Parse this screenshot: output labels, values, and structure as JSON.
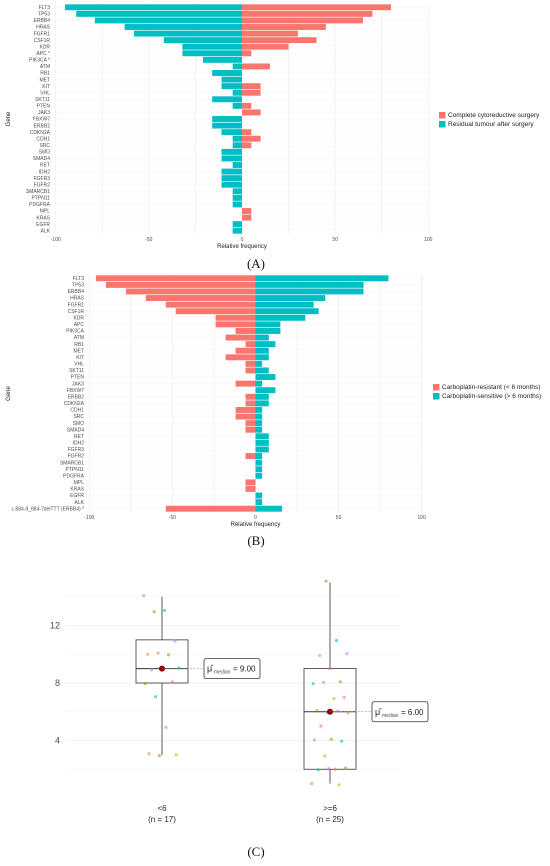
{
  "chart_data": [
    {
      "type": "bar",
      "panel_label": "(A)",
      "ylabel": "Gene",
      "xlabel": "Relative frequency",
      "x_ticks": [
        "-100",
        "-50",
        "0",
        "50",
        "100"
      ],
      "xlim": [
        -102,
        102
      ],
      "categories": [
        "FLT3",
        "TP53",
        "ERBB4",
        "HRAS",
        "FGFR1",
        "CSF1R",
        "KDR",
        "APC *",
        "PIK3CA *",
        "ATM",
        "RB1",
        "MET",
        "KIT",
        "VHL",
        "SKT11",
        "PTEN",
        "JAK3",
        "FBXW7",
        "ERBB2",
        "CDKN2A",
        "CDH1",
        "SRC",
        "SMO",
        "SMAD4",
        "RET",
        "IDH2",
        "FGFR3",
        "FGFR2",
        "SMARCB1",
        "PTPN11",
        "PDGFRA",
        "MPL",
        "KRAS",
        "EGFR",
        "ALK"
      ],
      "series": [
        {
          "name": "Complete cytoreductive surgery",
          "color": "#F8766D",
          "values": [
            80,
            70,
            65,
            45,
            30,
            40,
            25,
            5,
            0,
            15,
            0,
            0,
            10,
            10,
            0,
            5,
            10,
            0,
            0,
            5,
            10,
            5,
            0,
            0,
            0,
            0,
            0,
            0,
            0,
            0,
            0,
            5,
            5,
            0,
            0
          ]
        },
        {
          "name": "Residual tumour after surgery",
          "color": "#00BFC4",
          "values": [
            -95,
            -89,
            -79,
            -63,
            -58,
            -42,
            -32,
            -32,
            -21,
            -5,
            -16,
            -11,
            -11,
            -5,
            -16,
            -5,
            0,
            -16,
            -16,
            -11,
            -5,
            -5,
            -11,
            -11,
            -5,
            -11,
            -11,
            -11,
            -5,
            -5,
            -5,
            0,
            0,
            -5,
            -5
          ]
        }
      ],
      "legend_position": "right",
      "grid": true
    },
    {
      "type": "bar",
      "panel_label": "(B)",
      "ylabel": "Gene",
      "xlabel": "Relative frequency",
      "x_ticks": [
        "-100",
        "-50",
        "0",
        "50",
        "100"
      ],
      "xlim": [
        -102,
        102
      ],
      "categories": [
        "FLT3",
        "TP53",
        "ERBB4",
        "HRAS",
        "FGFR1",
        "CSF1R",
        "KDR",
        "APC",
        "PIK3CA",
        "ATM",
        "RB1",
        "MET",
        "KIT",
        "VHL",
        "SKT11",
        "PTEN",
        "JAK3",
        "FBXW7",
        "ERBB2",
        "CDKN2A",
        "CDH1",
        "SRC",
        "SMO",
        "SMAD4",
        "RET",
        "IDH2",
        "FGFR3",
        "FGFR2",
        "SMARCB1",
        "PTPN11",
        "PDGFRA",
        "MPL",
        "KRAS",
        "EGFR",
        "ALK",
        "c.884-9_884-7delTTT (ERBB4) *"
      ],
      "series": [
        {
          "name": "Carboplatin-resistant (< 6 months)",
          "color": "#F8766D",
          "values": [
            -96,
            -90,
            -78,
            -66,
            -54,
            -48,
            -24,
            -24,
            -12,
            -18,
            -6,
            -12,
            -18,
            -6,
            -6,
            0,
            -12,
            0,
            -6,
            -6,
            -12,
            -12,
            -6,
            -6,
            0,
            0,
            0,
            -6,
            0,
            0,
            0,
            -6,
            -6,
            0,
            0,
            -54
          ]
        },
        {
          "name": "Carboplatin-sensitive (> 6 months)",
          "color": "#00BFC4",
          "values": [
            80,
            65,
            65,
            42,
            35,
            38,
            30,
            15,
            15,
            8,
            12,
            8,
            8,
            4,
            8,
            12,
            4,
            12,
            8,
            8,
            4,
            4,
            4,
            4,
            8,
            8,
            8,
            4,
            4,
            4,
            4,
            0,
            0,
            4,
            4,
            16
          ]
        }
      ],
      "legend_position": "right",
      "grid": true
    },
    {
      "type": "box",
      "panel_label": "(C)",
      "y_ticks": [
        4,
        8,
        12
      ],
      "ylim": [
        0,
        16
      ],
      "groups": [
        {
          "label": "<6",
          "n_label": "(n = 17)",
          "q1": 8,
          "median": 9,
          "q3": 11,
          "whisker_low": 3,
          "whisker_high": 14,
          "annotation": "= 9.00",
          "points": [
            14,
            13,
            13,
            11,
            10,
            10,
            10,
            9,
            9,
            9,
            8,
            8,
            7,
            5,
            3,
            3,
            3
          ]
        },
        {
          "label": ">=6",
          "n_label": "(n = 25)",
          "q1": 2,
          "median": 6,
          "q3": 9,
          "whisker_low": 1,
          "whisker_high": 15,
          "annotation": "= 6.00",
          "points": [
            15,
            11,
            10,
            10,
            9,
            8,
            8,
            8,
            7,
            7,
            6,
            6,
            6,
            6,
            5,
            4,
            4,
            4,
            3,
            2,
            2,
            2,
            2,
            1,
            1
          ]
        }
      ],
      "median_symbol": "μ̂",
      "median_subscript": "median"
    }
  ]
}
